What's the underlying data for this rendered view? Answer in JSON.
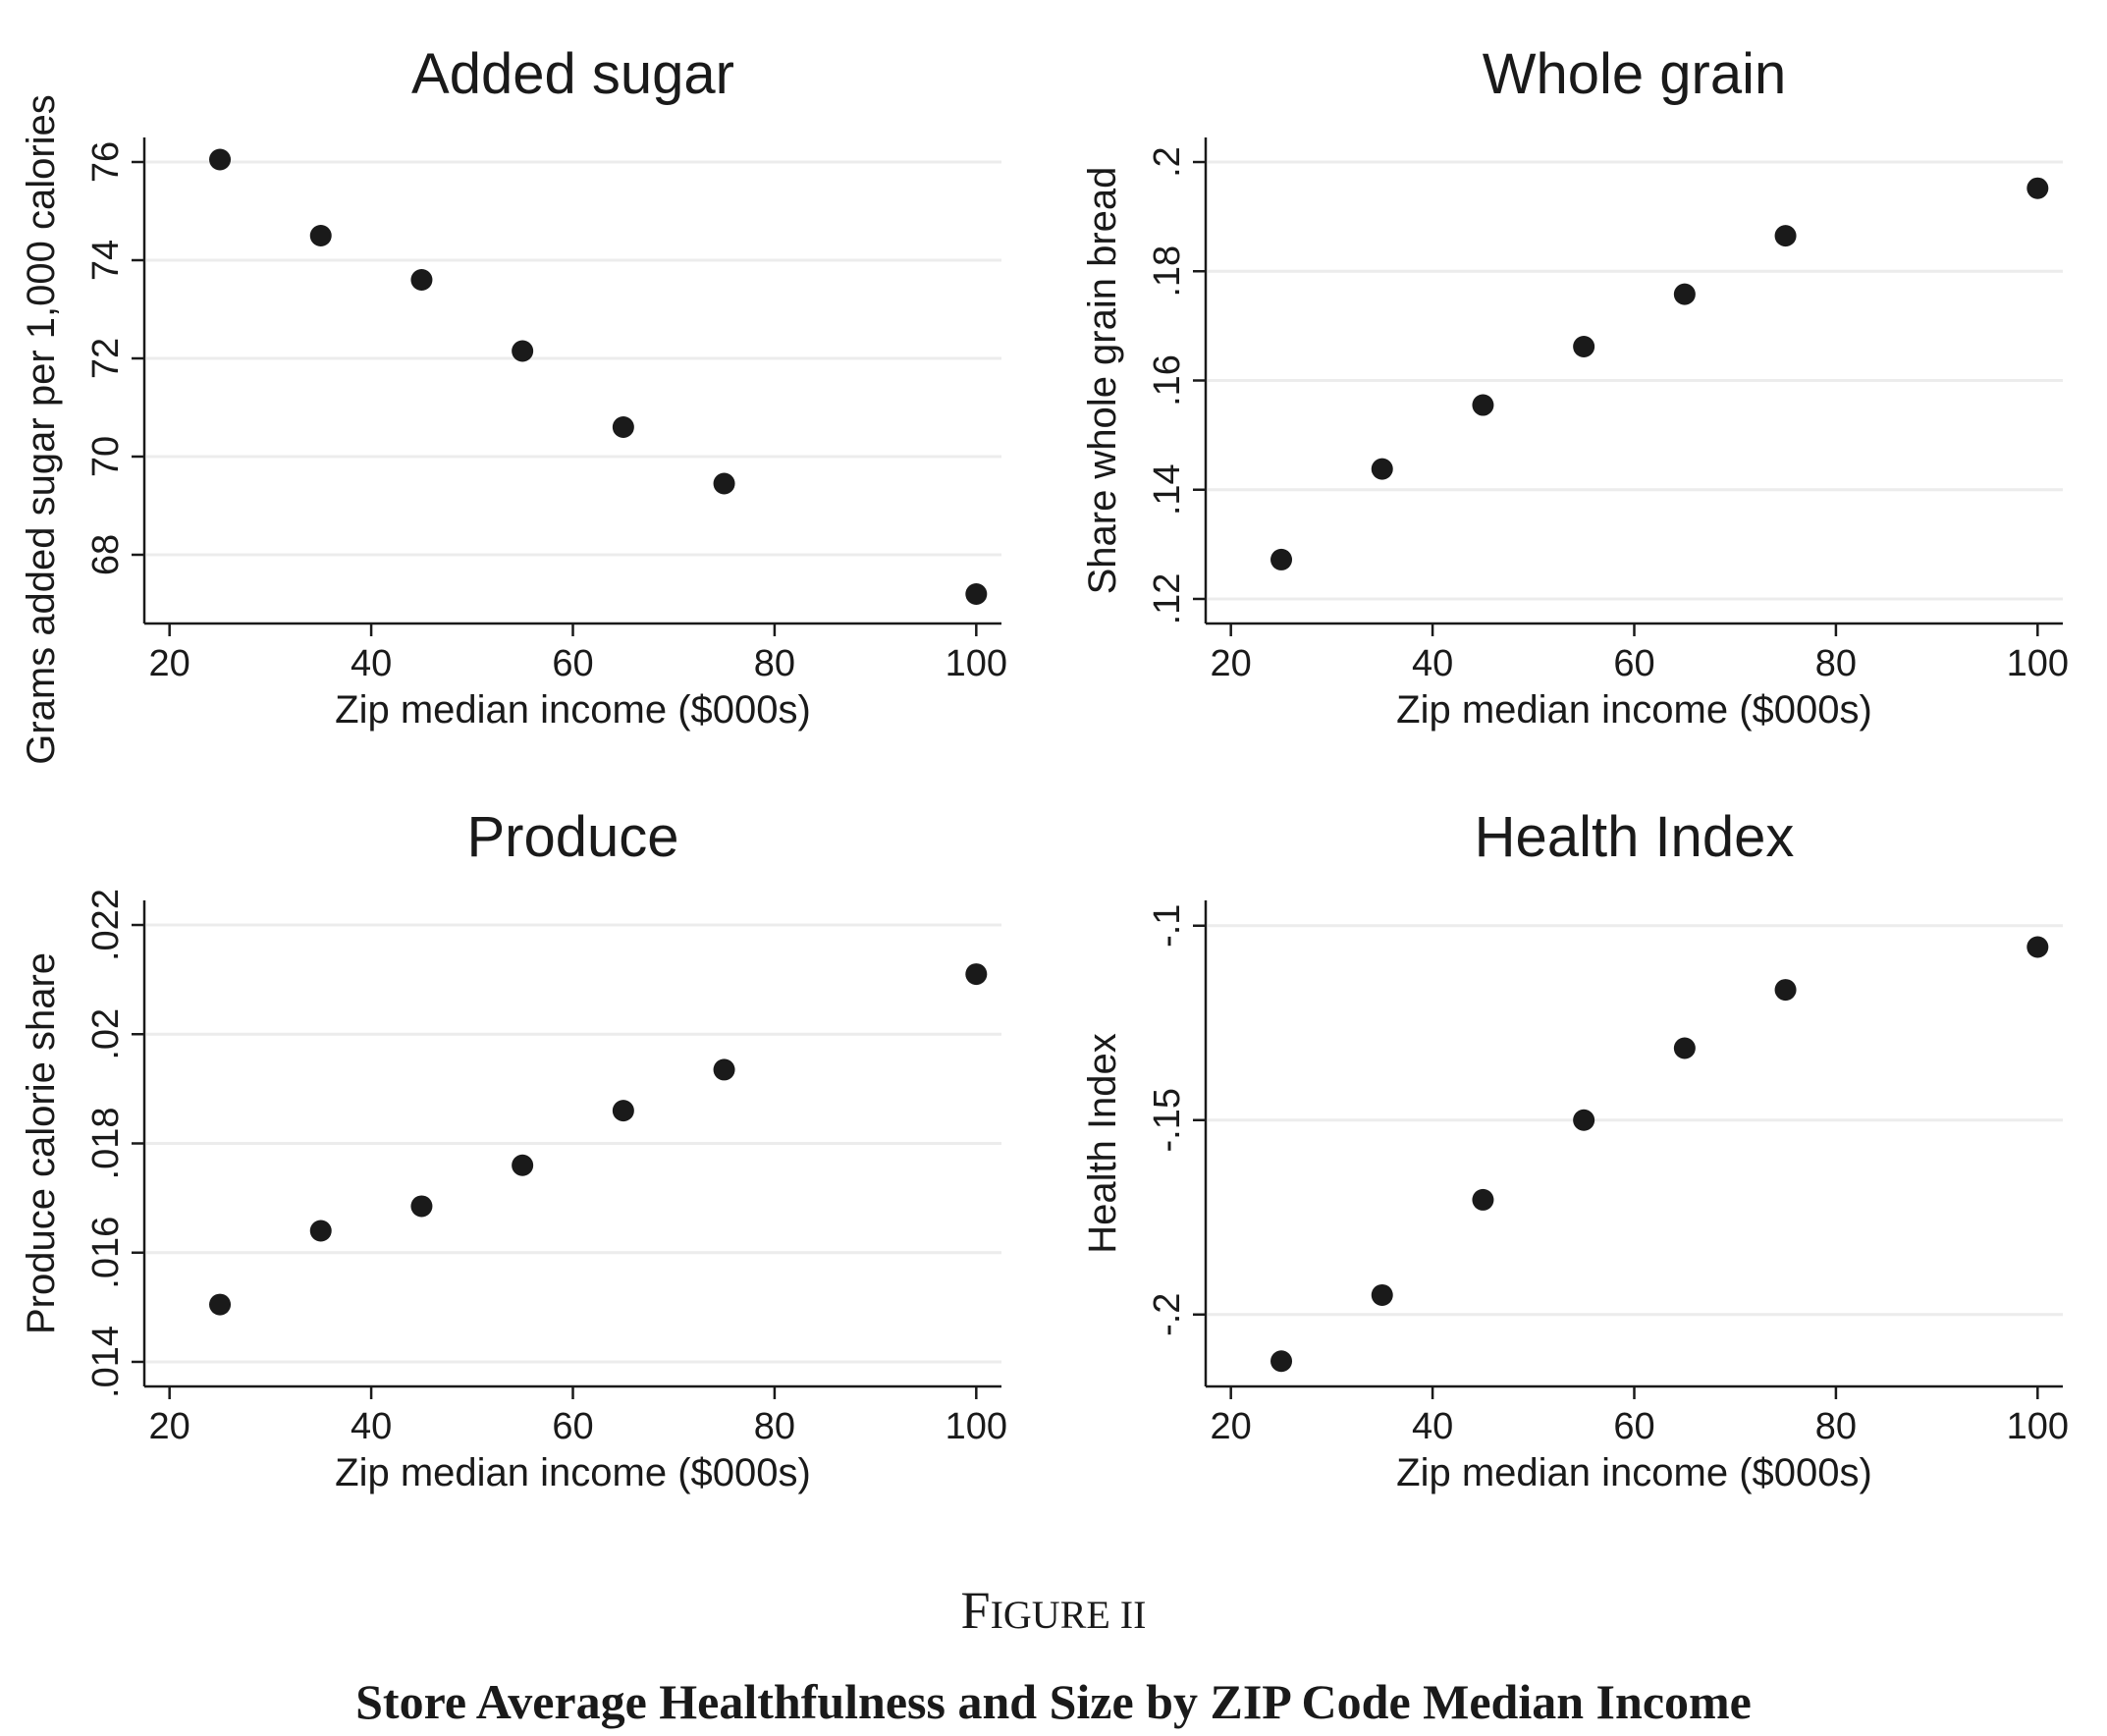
{
  "figure": {
    "label": "FIGURE II",
    "label_first": "F",
    "label_rest": "IGURE II",
    "caption": "Store Average Healthfulness and Size by ZIP Code Median Income"
  },
  "chart_data": [
    {
      "type": "scatter",
      "title": "Added sugar",
      "xlabel": "Zip median income ($000s)",
      "ylabel": "Grams added sugar per 1,000 calories",
      "xlim": [
        17.5,
        102.5
      ],
      "ylim": [
        66.6,
        76.5
      ],
      "xticks": [
        20,
        40,
        60,
        80,
        100
      ],
      "xtick_labels": [
        "20",
        "40",
        "60",
        "80",
        "100"
      ],
      "yticks": [
        68,
        70,
        72,
        74,
        76
      ],
      "ytick_labels": [
        "68",
        "70",
        "72",
        "74",
        "76"
      ],
      "grid": true,
      "series": [
        {
          "x": [
            25,
            35,
            45,
            55,
            65,
            75,
            100
          ],
          "y": [
            76.05,
            74.5,
            73.6,
            72.15,
            70.6,
            69.45,
            67.2
          ]
        }
      ]
    },
    {
      "type": "scatter",
      "title": "Whole grain",
      "xlabel": "Zip median income ($000s)",
      "ylabel": "Share whole grain bread",
      "xlim": [
        17.5,
        102.5
      ],
      "ylim": [
        0.1155,
        0.2045
      ],
      "xticks": [
        20,
        40,
        60,
        80,
        100
      ],
      "xtick_labels": [
        "20",
        "40",
        "60",
        "80",
        "100"
      ],
      "yticks": [
        0.12,
        0.14,
        0.16,
        0.18,
        0.2
      ],
      "ytick_labels": [
        ".12",
        ".14",
        ".16",
        ".18",
        ".2"
      ],
      "grid": true,
      "series": [
        {
          "x": [
            25,
            35,
            45,
            55,
            65,
            75,
            100
          ],
          "y": [
            0.1272,
            0.1438,
            0.1555,
            0.1662,
            0.1758,
            0.1865,
            0.1952
          ]
        }
      ]
    },
    {
      "type": "scatter",
      "title": "Produce",
      "xlabel": "Zip median income ($000s)",
      "ylabel": "Produce calorie share",
      "xlim": [
        17.5,
        102.5
      ],
      "ylim": [
        0.01355,
        0.02245
      ],
      "xticks": [
        20,
        40,
        60,
        80,
        100
      ],
      "xtick_labels": [
        "20",
        "40",
        "60",
        "80",
        "100"
      ],
      "yticks": [
        0.014,
        0.016,
        0.018,
        0.02,
        0.022
      ],
      "ytick_labels": [
        ".014",
        ".016",
        ".018",
        ".02",
        ".022"
      ],
      "grid": true,
      "series": [
        {
          "x": [
            25,
            35,
            45,
            55,
            65,
            75,
            100
          ],
          "y": [
            0.01505,
            0.0164,
            0.01685,
            0.0176,
            0.0186,
            0.01935,
            0.0211
          ]
        }
      ]
    },
    {
      "type": "scatter",
      "title": "Health Index",
      "xlabel": "Zip median income ($000s)",
      "ylabel": "Health Index",
      "xlim": [
        17.5,
        102.5
      ],
      "ylim": [
        -0.2185,
        -0.0935
      ],
      "xticks": [
        20,
        40,
        60,
        80,
        100
      ],
      "xtick_labels": [
        "20",
        "40",
        "60",
        "80",
        "100"
      ],
      "yticks": [
        -0.2,
        -0.15,
        -0.1
      ],
      "ytick_labels": [
        "-.2",
        "-.15",
        "-.1"
      ],
      "grid": true,
      "series": [
        {
          "x": [
            25,
            35,
            45,
            55,
            65,
            75,
            100
          ],
          "y": [
            -0.212,
            -0.195,
            -0.1705,
            -0.15,
            -0.1315,
            -0.1165,
            -0.1055
          ]
        }
      ]
    }
  ]
}
